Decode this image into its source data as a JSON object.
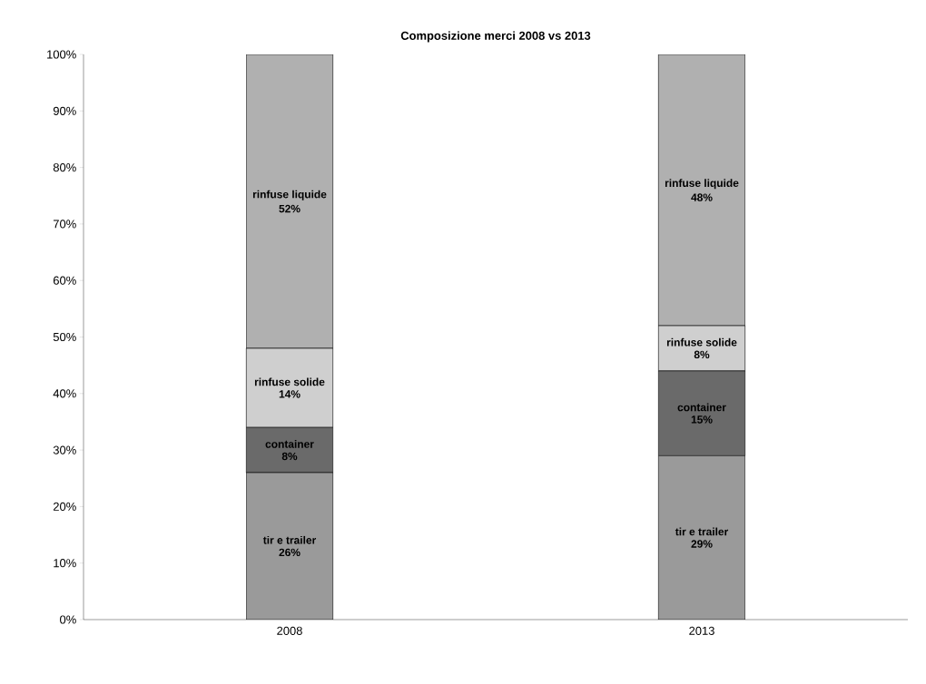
{
  "chart_data": {
    "type": "bar",
    "stacked": true,
    "title": "Composizione merci 2008 vs 2013",
    "categories": [
      "2008",
      "2013"
    ],
    "series": [
      {
        "name": "tir e trailer",
        "color": "#9a9a9a",
        "values": [
          26,
          29
        ],
        "value_labels": [
          "26%",
          "29%"
        ]
      },
      {
        "name": "container",
        "color": "#6a6a6a",
        "values": [
          8,
          15
        ],
        "value_labels": [
          "8%",
          "15%"
        ]
      },
      {
        "name": "rinfuse solide",
        "color": "#cfcfcf",
        "values": [
          14,
          8
        ],
        "value_labels": [
          "14%",
          "8%"
        ]
      },
      {
        "name": "rinfuse liquide",
        "color": "#b0b0b0",
        "values": [
          52,
          48
        ],
        "value_labels": [
          "52%",
          "48%"
        ]
      }
    ],
    "ylim": [
      0,
      100
    ],
    "yticks": [
      {
        "value": 0,
        "label": "0%"
      },
      {
        "value": 10,
        "label": "10%"
      },
      {
        "value": 20,
        "label": "20%"
      },
      {
        "value": 30,
        "label": "30%"
      },
      {
        "value": 40,
        "label": "40%"
      },
      {
        "value": 50,
        "label": "50%"
      },
      {
        "value": 60,
        "label": "60%"
      },
      {
        "value": 70,
        "label": "70%"
      },
      {
        "value": 80,
        "label": "80%"
      },
      {
        "value": 90,
        "label": "90%"
      },
      {
        "value": 100,
        "label": "100%"
      }
    ],
    "legend": false,
    "grid": false
  }
}
